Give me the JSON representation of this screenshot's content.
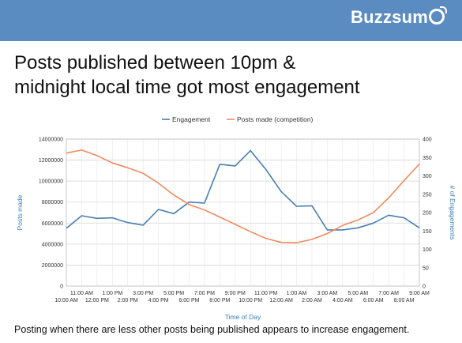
{
  "header": {
    "brand": "Buzzsum"
  },
  "title_line1": "Posts published between 10pm &",
  "title_line2": "midnight local time got most engagement",
  "caption": "Posting when there are less other posts being published appears to increase engagement.",
  "chart_data": {
    "type": "line",
    "xlabel": "Time of Day",
    "ylabel_left": "Posts made",
    "ylabel_right": "# of Engagements",
    "categories": [
      "10:00 AM",
      "11:00 AM",
      "12:00 PM",
      "1:00 PM",
      "2:00 PM",
      "3:00 PM",
      "4:00 PM",
      "5:00 PM",
      "6:00 PM",
      "7:00 PM",
      "8:00 PM",
      "9:00 PM",
      "10:00 PM",
      "11:00 PM",
      "12:00 AM",
      "1:00 AM",
      "2:00 AM",
      "3:00 AM",
      "4:00 AM",
      "5:00 AM",
      "6:00 AM",
      "7:00 AM",
      "8:00 AM",
      "9:00 AM"
    ],
    "left_ticks": [
      "0",
      "2000000",
      "4000000",
      "6000000",
      "8000000",
      "10000000",
      "12000000",
      "14000000"
    ],
    "right_ticks": [
      "0",
      "50",
      "100",
      "150",
      "200",
      "250",
      "300",
      "350",
      "400"
    ],
    "ylim_left": [
      0,
      14000000
    ],
    "ylim_right": [
      0,
      400
    ],
    "legend_position": "top",
    "grid": true,
    "series": [
      {
        "name": "Engagement",
        "axis": "left",
        "color": "#4a7fb0",
        "values": [
          5500000,
          6700000,
          6450000,
          6500000,
          6050000,
          5800000,
          7300000,
          6900000,
          8000000,
          7900000,
          11600000,
          11450000,
          12900000,
          11100000,
          9000000,
          7600000,
          7650000,
          5350000,
          5350000,
          5550000,
          6000000,
          6750000,
          6500000,
          5550000
        ]
      },
      {
        "name": "Posts made (competition)",
        "axis": "right",
        "color": "#f08a5d",
        "values": [
          362,
          370,
          355,
          335,
          322,
          307,
          280,
          248,
          222,
          207,
          188,
          168,
          148,
          130,
          119,
          118,
          127,
          143,
          165,
          180,
          200,
          240,
          287,
          332
        ]
      }
    ]
  }
}
